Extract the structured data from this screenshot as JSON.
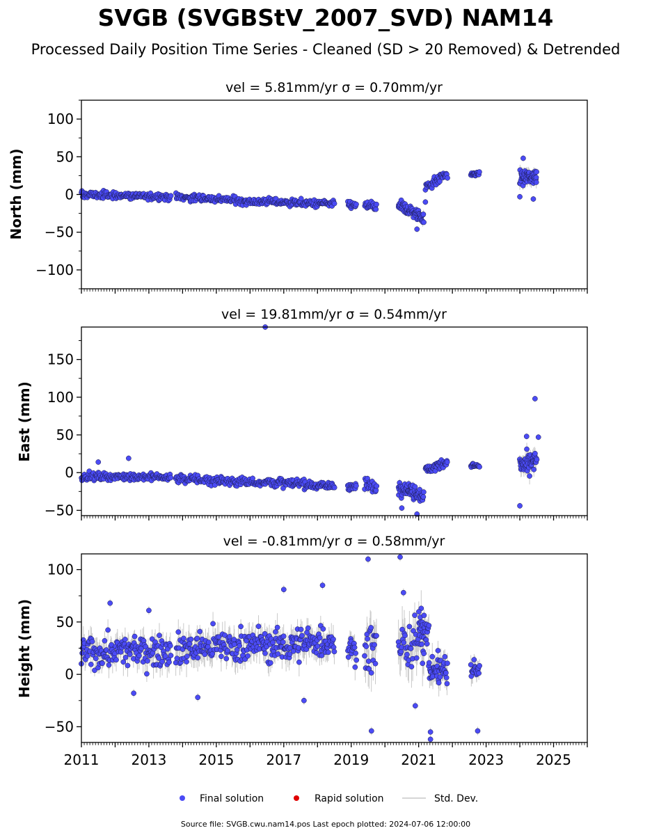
{
  "title": "SVGB (SVGBStV_2007_SVD) NAM14",
  "subtitle": "Processed Daily Position Time Series - Cleaned (SD > 20 Removed) & Detrended",
  "legend": {
    "final_label": "Final solution",
    "rapid_label": "Rapid solution",
    "std_label": "Std. Dev."
  },
  "footer": "Source file: SVGB.cwu.nam14.pos  Last epoch plotted: 2024-07-06 12:00:00",
  "colors": {
    "final": "#4b4bf5",
    "final_edge": "#1a1a4a",
    "rapid": "#e00000",
    "stddev": "#c8c8c8"
  },
  "chart_data": [
    {
      "type": "scatter",
      "panel": "north",
      "title": "vel = 5.81mm/yr   σ = 0.70mm/yr",
      "ylabel": "North (mm)",
      "xlim": [
        2011.0,
        2026.0
      ],
      "ylim": [
        -125,
        125
      ],
      "yticks": [
        -100,
        -50,
        0,
        50,
        100
      ],
      "ytick_labels": [
        "−100",
        "−50",
        "0",
        "50",
        "100"
      ],
      "xtick_labels": [],
      "segments": [
        {
          "t0": 2011.0,
          "t1": 2013.65,
          "y0": 0,
          "y1": -3,
          "spread": 4,
          "n": 150,
          "sd": 3
        },
        {
          "t0": 2013.8,
          "t1": 2016.4,
          "y0": -3,
          "y1": -10,
          "spread": 4,
          "n": 140,
          "sd": 3
        },
        {
          "t0": 2016.4,
          "t1": 2018.5,
          "y0": -9,
          "y1": -13,
          "spread": 4,
          "n": 120,
          "sd": 3
        },
        {
          "t0": 2018.9,
          "t1": 2019.15,
          "y0": -13,
          "y1": -15,
          "spread": 4,
          "n": 16,
          "sd": 3
        },
        {
          "t0": 2019.4,
          "t1": 2019.75,
          "y0": -14,
          "y1": -16,
          "spread": 5,
          "n": 22,
          "sd": 3
        },
        {
          "t0": 2020.4,
          "t1": 2021.15,
          "y0": -15,
          "y1": -30,
          "spread": 7,
          "n": 70,
          "sd": 4
        },
        {
          "t0": 2021.2,
          "t1": 2021.85,
          "y0": 10,
          "y1": 27,
          "spread": 5,
          "n": 45,
          "sd": 3
        },
        {
          "t0": 2022.55,
          "t1": 2022.8,
          "y0": 27,
          "y1": 27,
          "spread": 2,
          "n": 18,
          "sd": 2
        },
        {
          "t0": 2024.0,
          "t1": 2024.5,
          "y0": 22,
          "y1": 24,
          "spread": 8,
          "n": 55,
          "sd": 6
        }
      ],
      "outliers": [
        {
          "t": 2020.95,
          "v": -46
        },
        {
          "t": 2021.2,
          "v": -10
        },
        {
          "t": 2024.0,
          "v": -3
        },
        {
          "t": 2024.1,
          "v": 48
        },
        {
          "t": 2024.4,
          "v": -6
        }
      ]
    },
    {
      "type": "scatter",
      "panel": "east",
      "title": "vel = 19.81mm/yr   σ = 0.54mm/yr",
      "ylabel": "East (mm)",
      "xlim": [
        2011.0,
        2026.0
      ],
      "ylim": [
        -57,
        193
      ],
      "yticks": [
        -50,
        0,
        50,
        100,
        150
      ],
      "ytick_labels": [
        "−50",
        "0",
        "50",
        "100",
        "150"
      ],
      "xtick_labels": [],
      "segments": [
        {
          "t0": 2011.0,
          "t1": 2013.65,
          "y0": -5,
          "y1": -6,
          "spread": 4,
          "n": 150,
          "sd": 3
        },
        {
          "t0": 2013.8,
          "t1": 2016.4,
          "y0": -8,
          "y1": -13,
          "spread": 5,
          "n": 140,
          "sd": 3
        },
        {
          "t0": 2016.4,
          "t1": 2018.5,
          "y0": -12,
          "y1": -18,
          "spread": 5,
          "n": 120,
          "sd": 3
        },
        {
          "t0": 2018.9,
          "t1": 2019.15,
          "y0": -17,
          "y1": -19,
          "spread": 5,
          "n": 16,
          "sd": 3
        },
        {
          "t0": 2019.4,
          "t1": 2019.75,
          "y0": -16,
          "y1": -20,
          "spread": 7,
          "n": 22,
          "sd": 4
        },
        {
          "t0": 2020.4,
          "t1": 2021.15,
          "y0": -18,
          "y1": -30,
          "spread": 8,
          "n": 70,
          "sd": 4
        },
        {
          "t0": 2021.2,
          "t1": 2021.85,
          "y0": 3,
          "y1": 14,
          "spread": 5,
          "n": 45,
          "sd": 3
        },
        {
          "t0": 2022.55,
          "t1": 2022.8,
          "y0": 10,
          "y1": 8,
          "spread": 3,
          "n": 18,
          "sd": 2
        },
        {
          "t0": 2024.0,
          "t1": 2024.5,
          "y0": 8,
          "y1": 16,
          "spread": 11,
          "n": 55,
          "sd": 8
        }
      ],
      "outliers": [
        {
          "t": 2016.45,
          "v": 193
        },
        {
          "t": 2024.45,
          "v": 98
        },
        {
          "t": 2024.0,
          "v": -44
        },
        {
          "t": 2020.5,
          "v": -47
        },
        {
          "t": 2020.95,
          "v": -55
        },
        {
          "t": 2024.2,
          "v": 48
        },
        {
          "t": 2024.55,
          "v": 47
        },
        {
          "t": 2012.4,
          "v": 19
        },
        {
          "t": 2011.5,
          "v": 14
        }
      ]
    },
    {
      "type": "scatter",
      "panel": "height",
      "title": "vel = -0.81mm/yr   σ = 0.58mm/yr",
      "ylabel": "Height (mm)",
      "xlim": [
        2011.0,
        2026.0
      ],
      "ylim": [
        -65,
        115
      ],
      "yticks": [
        -50,
        0,
        50,
        100
      ],
      "ytick_labels": [
        "−50",
        "0",
        "50",
        "100"
      ],
      "xticks": [
        2011,
        2013,
        2015,
        2017,
        2019,
        2021,
        2023,
        2025
      ],
      "xtick_labels": [
        "2011",
        "2013",
        "2015",
        "2017",
        "2019",
        "2021",
        "2023",
        "2025"
      ],
      "segments": [
        {
          "t0": 2011.0,
          "t1": 2013.65,
          "y0": 20,
          "y1": 24,
          "spread": 12,
          "n": 150,
          "sd": 9
        },
        {
          "t0": 2013.8,
          "t1": 2016.4,
          "y0": 24,
          "y1": 30,
          "spread": 13,
          "n": 140,
          "sd": 10
        },
        {
          "t0": 2016.4,
          "t1": 2018.5,
          "y0": 26,
          "y1": 32,
          "spread": 13,
          "n": 120,
          "sd": 10
        },
        {
          "t0": 2018.9,
          "t1": 2019.15,
          "y0": 25,
          "y1": 22,
          "spread": 10,
          "n": 16,
          "sd": 9
        },
        {
          "t0": 2019.4,
          "t1": 2019.75,
          "y0": 25,
          "y1": 28,
          "spread": 20,
          "n": 22,
          "sd": 14
        },
        {
          "t0": 2020.4,
          "t1": 2021.15,
          "y0": 30,
          "y1": 30,
          "spread": 22,
          "n": 40,
          "sd": 15
        },
        {
          "t0": 2021.0,
          "t1": 2021.3,
          "y0": 50,
          "y1": 40,
          "spread": 10,
          "n": 25,
          "sd": 8
        },
        {
          "t0": 2021.3,
          "t1": 2021.85,
          "y0": 5,
          "y1": 5,
          "spread": 12,
          "n": 45,
          "sd": 9
        },
        {
          "t0": 2022.55,
          "t1": 2022.8,
          "y0": 5,
          "y1": 5,
          "spread": 10,
          "n": 18,
          "sd": 8
        }
      ],
      "outliers": [
        {
          "t": 2012.55,
          "v": -18
        },
        {
          "t": 2014.45,
          "v": -22
        },
        {
          "t": 2017.6,
          "v": -25
        },
        {
          "t": 2018.15,
          "v": 85
        },
        {
          "t": 2019.5,
          "v": 110
        },
        {
          "t": 2019.6,
          "v": -54
        },
        {
          "t": 2020.45,
          "v": 112
        },
        {
          "t": 2020.55,
          "v": 78
        },
        {
          "t": 2020.9,
          "v": -30
        },
        {
          "t": 2021.35,
          "v": -55
        },
        {
          "t": 2021.35,
          "v": -62
        },
        {
          "t": 2022.75,
          "v": -54
        },
        {
          "t": 2017.0,
          "v": 81
        },
        {
          "t": 2011.85,
          "v": 68
        },
        {
          "t": 2013.0,
          "v": 61
        }
      ]
    }
  ]
}
